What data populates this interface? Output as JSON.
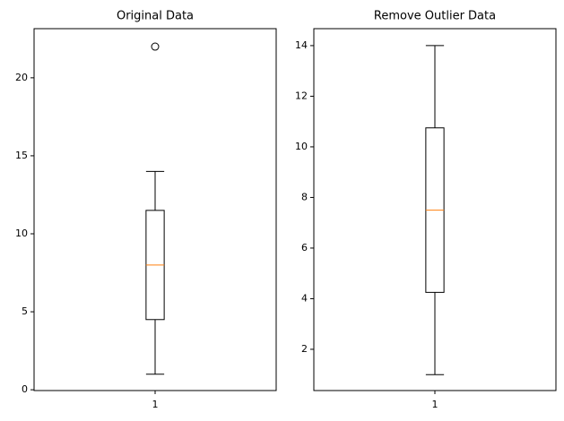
{
  "chart_data": [
    {
      "type": "box",
      "title": "Original Data",
      "categories": [
        "1"
      ],
      "series": [
        {
          "whislo": 1,
          "q1": 4.5,
          "median": 8,
          "q3": 11.5,
          "whishi": 14,
          "fliers": [
            22
          ]
        }
      ],
      "box_color": "#000000",
      "median_color": "#ff7f0e",
      "ylim": [
        -0.05,
        23.15
      ],
      "yticks": [
        0,
        5,
        10,
        15,
        20
      ]
    },
    {
      "type": "box",
      "title": "Remove Outlier Data",
      "categories": [
        "1"
      ],
      "series": [
        {
          "whislo": 1,
          "q1": 4.25,
          "median": 7.5,
          "q3": 10.75,
          "whishi": 14,
          "fliers": []
        }
      ],
      "box_color": "#000000",
      "median_color": "#ff7f0e",
      "ylim": [
        0.37,
        14.67
      ],
      "yticks": [
        2,
        4,
        6,
        8,
        10,
        12,
        14
      ]
    }
  ]
}
